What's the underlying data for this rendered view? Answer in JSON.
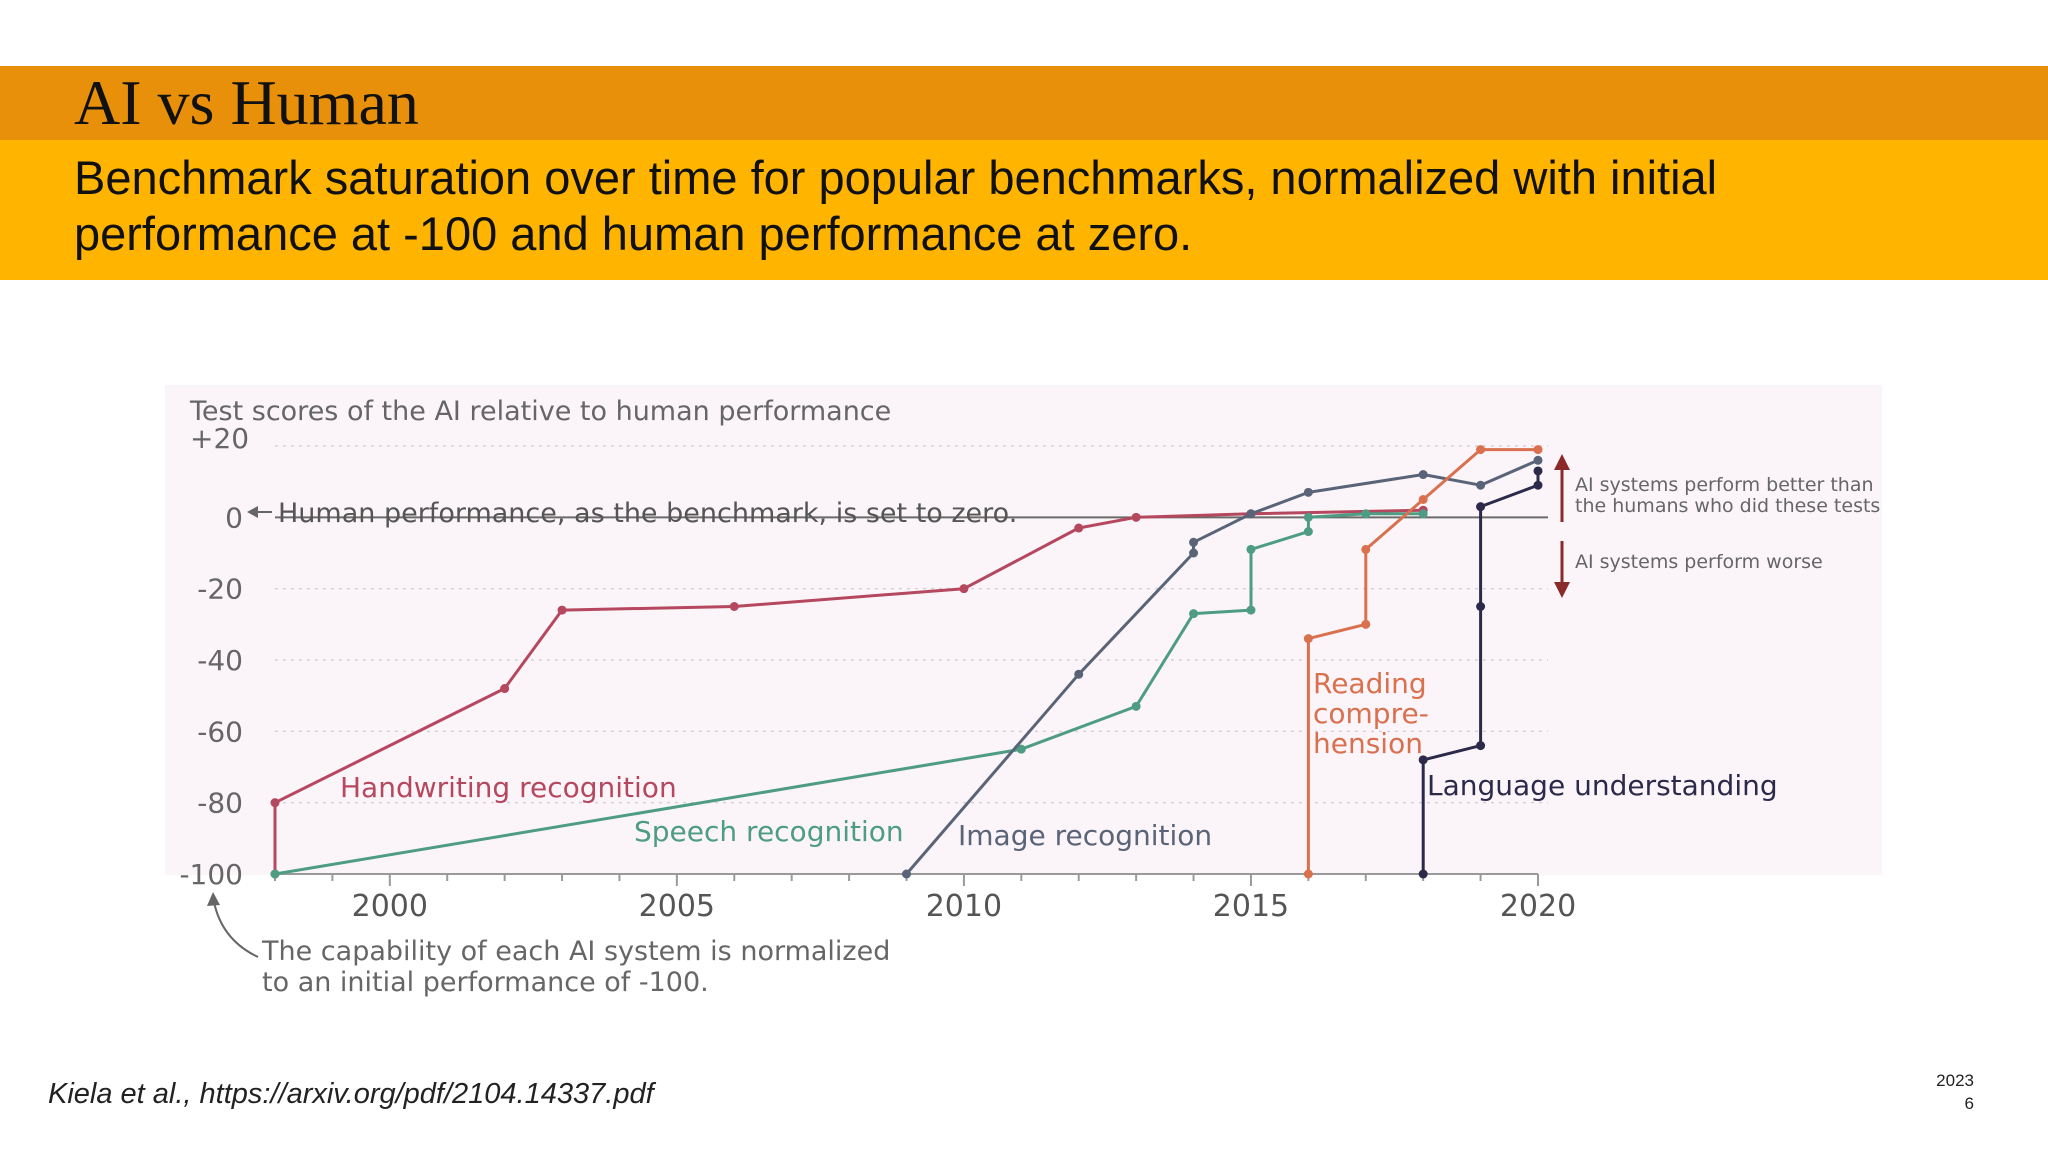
{
  "slide": {
    "title": "AI vs Human",
    "subtitle": "Benchmark saturation over time for popular benchmarks, normalized with initial performance at -100 and human performance at zero.",
    "citation": "Kiela et al., https://arxiv.org/pdf/2104.14337.pdf",
    "year": "2023",
    "page_number": "6"
  },
  "chart_data": {
    "type": "line",
    "ytitle": "Test scores of the AI relative to human performance",
    "xlim": [
      1998,
      2020
    ],
    "ylim": [
      -100,
      20
    ],
    "x_ticks": [
      2000,
      2005,
      2010,
      2015,
      2020
    ],
    "y_ticks": [
      20,
      0,
      -20,
      -40,
      -60,
      -80,
      -100
    ],
    "y_tick_labels": [
      "+20",
      "0",
      "-20",
      "-40",
      "-60",
      "-80",
      "-100"
    ],
    "grid": true,
    "human_line_label": "Human performance, as the benchmark, is set to zero.",
    "annotation_better": "AI systems perform better than the humans who did these tests",
    "annotation_worse": "AI systems perform worse",
    "annotation_initial": "The capability of each AI system is normalized to an initial performance of -100.",
    "annotation_colors": {
      "arrow": "#8B2A2A",
      "text": "#666666",
      "axis": "#666666"
    },
    "series": [
      {
        "name": "Handwriting recognition",
        "color": "#B5485E",
        "x": [
          1998,
          1998,
          2002,
          2003,
          2006,
          2010,
          2012,
          2013,
          2015,
          2018
        ],
        "y": [
          -100,
          -80,
          -48,
          -26,
          -25,
          -20,
          -3,
          0,
          1,
          2
        ]
      },
      {
        "name": "Speech recognition",
        "color": "#4E9C83",
        "x": [
          1998,
          2011,
          2013,
          2014,
          2015,
          2015,
          2016,
          2016,
          2017,
          2018
        ],
        "y": [
          -100,
          -65,
          -53,
          -27,
          -26,
          -9,
          -4,
          0,
          1,
          1
        ]
      },
      {
        "name": "Image recognition",
        "color": "#5A6478",
        "x": [
          2009,
          2012,
          2014,
          2014,
          2015,
          2016,
          2018,
          2019,
          2020
        ],
        "y": [
          -100,
          -44,
          -10,
          -7,
          1,
          7,
          12,
          9,
          16
        ]
      },
      {
        "name": "Reading comprehension",
        "label_lines": [
          "Reading",
          "compre-",
          "hension"
        ],
        "color": "#D9704E",
        "x": [
          2016,
          2016,
          2017,
          2017,
          2018,
          2019,
          2020
        ],
        "y": [
          -100,
          -34,
          -30,
          -9,
          5,
          19,
          19
        ]
      },
      {
        "name": "Language understanding",
        "color": "#2C2A4A",
        "x": [
          2018,
          2018,
          2019,
          2019,
          2019,
          2020,
          2020
        ],
        "y": [
          -100,
          -68,
          -64,
          -25,
          3,
          9,
          13
        ]
      }
    ]
  }
}
